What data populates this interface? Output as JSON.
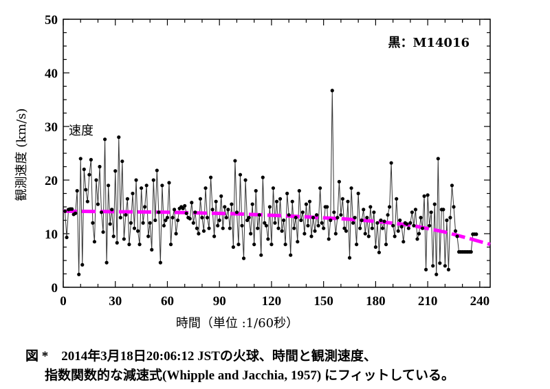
{
  "chart_data": {
    "type": "line",
    "ylabel": "観測速度 (km/s)",
    "xlabel": "時間（単位 :1/60秒）",
    "legend_text": "黒：M14016",
    "annotation": "速度",
    "xlim": [
      0,
      246
    ],
    "ylim": [
      0,
      50
    ],
    "x_ticks": [
      0,
      30,
      60,
      90,
      120,
      150,
      180,
      210,
      240
    ],
    "y_ticks": [
      0,
      10,
      20,
      30,
      40,
      50
    ],
    "grid": false,
    "series": [
      {
        "style": "black line with dot markers",
        "color": "#000000",
        "x_first": 1,
        "x_step": 1,
        "values": [
          14.2,
          9.3,
          14.5,
          14.6,
          14.6,
          13.6,
          13.8,
          18.0,
          2.4,
          24.0,
          4.2,
          22.0,
          18.2,
          16.0,
          21.0,
          23.8,
          12.0,
          8.5,
          20.0,
          15.5,
          22.5,
          14.0,
          10.3,
          27.6,
          4.6,
          19.0,
          11.8,
          14.5,
          9.5,
          21.7,
          8.3,
          28.0,
          13.0,
          23.5,
          9.0,
          13.5,
          16.5,
          8.0,
          12.0,
          17.5,
          11.0,
          20.0,
          10.5,
          8.0,
          18.5,
          12.0,
          15.0,
          19.0,
          9.5,
          12.0,
          7.0,
          20.0,
          12.5,
          21.8,
          14.0,
          4.6,
          19.0,
          11.5,
          12.5,
          13.0,
          19.5,
          8.0,
          13.0,
          14.5,
          10.0,
          12.5,
          14.7,
          15.0,
          14.7,
          15.2,
          13.8,
          13.0,
          12.8,
          15.8,
          12.0,
          14.0,
          11.0,
          10.0,
          16.5,
          13.0,
          10.5,
          18.5,
          13.0,
          11.0,
          20.5,
          14.5,
          9.5,
          16.0,
          11.5,
          12.5,
          17.0,
          11.0,
          15.0,
          13.0,
          14.5,
          11.0,
          15.5,
          7.5,
          23.6,
          14.0,
          8.0,
          21.0,
          11.5,
          5.4,
          20.0,
          12.5,
          13.0,
          10.0,
          15.5,
          8.0,
          18.0,
          11.0,
          13.5,
          6.0,
          20.5,
          12.0,
          11.5,
          9.0,
          15.0,
          8.0,
          18.5,
          12.0,
          16.0,
          11.0,
          16.5,
          10.5,
          12.5,
          8.0,
          17.5,
          13.5,
          6.0,
          16.0,
          11.0,
          13.0,
          8.5,
          18.0,
          12.5,
          14.0,
          10.0,
          15.5,
          11.5,
          16.0,
          9.5,
          13.0,
          10.5,
          13.5,
          11.5,
          18.5,
          12.0,
          11.0,
          15.0,
          15.0,
          9.0,
          12.5,
          36.7,
          14.0,
          10.0,
          13.0,
          19.7,
          13.5,
          16.5,
          11.0,
          10.5,
          16.0,
          5.5,
          18.5,
          12.0,
          13.0,
          8.0,
          17.5,
          11.0,
          12.5,
          14.5,
          10.0,
          13.0,
          9.5,
          15.0,
          11.0,
          14.0,
          7.5,
          12.0,
          6.5,
          12.5,
          11.0,
          12.3,
          8.0,
          13.5,
          15.0,
          23.2,
          11.5,
          9.5,
          16.5,
          10.5,
          12.5,
          11.3,
          8.5,
          12.0,
          11.8,
          11.0,
          12.0,
          14.0,
          11.5,
          14.5,
          9.0,
          10.0,
          13.0,
          11.0,
          17.0,
          3.3,
          17.2,
          11.5,
          14.0,
          4.0,
          15.5,
          2.4,
          24.0,
          4.5,
          14.5,
          14.5,
          4.0,
          12.5,
          3.3,
          13.0,
          19.0,
          15.0,
          10.5,
          9.5,
          6.6,
          6.6,
          6.6,
          6.6,
          6.6,
          6.6,
          6.6,
          6.6,
          9.9,
          9.9,
          9.9
        ]
      },
      {
        "style": "magenta dashed fit",
        "color": "#ff00ff",
        "x": [
          0,
          60,
          100,
          130,
          160,
          180,
          200,
          220,
          235,
          246
        ],
        "y": [
          14.2,
          14.0,
          13.7,
          13.3,
          12.8,
          12.3,
          11.6,
          10.3,
          9.0,
          8.0
        ]
      }
    ]
  },
  "caption": {
    "line1": "図 *　2014年3月18日20:06:12 JSTの火球、時間と観測速度、",
    "line2": "指数関数的な減速式(Whipple and Jacchia, 1957) にフィットしている。"
  }
}
